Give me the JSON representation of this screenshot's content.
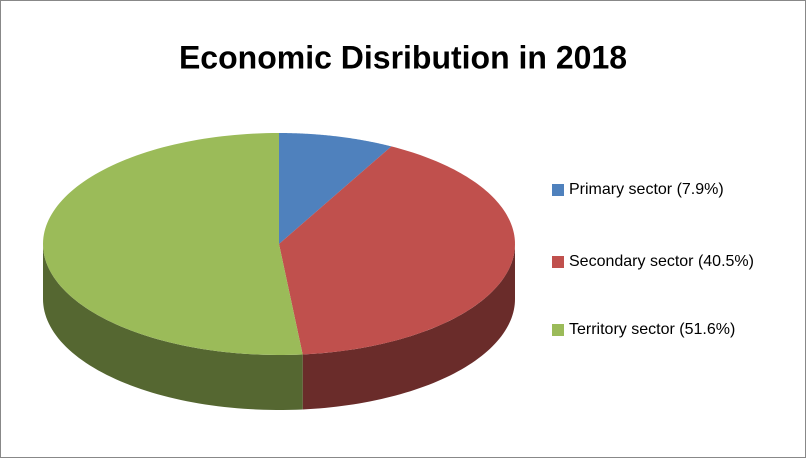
{
  "chart_data": {
    "type": "pie3d",
    "title": "Economic Disribution in 2018",
    "categories": [
      "Primary sector (7.9%)",
      "Secondary sector (40.5%)",
      "Territory sector (51.6%)"
    ],
    "values": [
      7.9,
      40.5,
      51.6
    ],
    "colors": [
      "#4f81bd",
      "#c0504d",
      "#9bbb59"
    ],
    "legend": "right"
  }
}
